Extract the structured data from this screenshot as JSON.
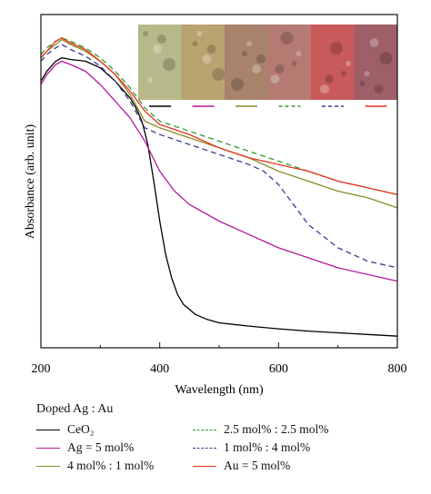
{
  "chart_data": {
    "type": "line",
    "xlabel": "Wavelength (nm)",
    "ylabel": "Absorbance (arb. unit)",
    "xlim": [
      200,
      800
    ],
    "ylim": [
      0,
      1
    ],
    "x_ticks": [
      "200",
      "400",
      "600",
      "800"
    ],
    "grid": false,
    "legend_title": "Doped Ag : Au",
    "legend_placement": "below",
    "series": [
      {
        "name": "CeO₂",
        "color": "#000000",
        "dash": "solid",
        "x": [
          200,
          210,
          225,
          235,
          250,
          275,
          300,
          325,
          350,
          360,
          370,
          380,
          390,
          400,
          410,
          420,
          430,
          440,
          460,
          480,
          500,
          550,
          600,
          650,
          700,
          750,
          800
        ],
        "y": [
          0.8,
          0.83,
          0.86,
          0.87,
          0.865,
          0.86,
          0.84,
          0.8,
          0.75,
          0.72,
          0.68,
          0.61,
          0.5,
          0.38,
          0.28,
          0.21,
          0.16,
          0.13,
          0.1,
          0.085,
          0.075,
          0.065,
          0.057,
          0.05,
          0.045,
          0.04,
          0.035
        ]
      },
      {
        "name": "Ag = 5 mol%",
        "color": "#b5179e",
        "dash": "solid",
        "x": [
          200,
          210,
          225,
          235,
          250,
          275,
          300,
          325,
          350,
          375,
          400,
          425,
          450,
          500,
          550,
          600,
          650,
          700,
          750,
          800
        ],
        "y": [
          0.79,
          0.82,
          0.85,
          0.86,
          0.85,
          0.83,
          0.79,
          0.74,
          0.69,
          0.62,
          0.53,
          0.47,
          0.43,
          0.38,
          0.34,
          0.3,
          0.27,
          0.24,
          0.22,
          0.2
        ]
      },
      {
        "name": "4 mol% : 1 mol%",
        "color": "#8a8a2a",
        "dash": "solid",
        "x": [
          200,
          210,
          225,
          235,
          250,
          275,
          300,
          325,
          350,
          375,
          400,
          450,
          500,
          550,
          600,
          650,
          700,
          750,
          800
        ],
        "y": [
          0.87,
          0.89,
          0.91,
          0.925,
          0.91,
          0.89,
          0.86,
          0.82,
          0.76,
          0.68,
          0.66,
          0.63,
          0.6,
          0.57,
          0.53,
          0.5,
          0.47,
          0.45,
          0.42
        ]
      },
      {
        "name": "2.5 mol% : 2.5 mol%",
        "color": "#2e9e2e",
        "dash": "dashed",
        "x": [
          200,
          210,
          225,
          235,
          250,
          275,
          300,
          325,
          350,
          375,
          400,
          450,
          500,
          550,
          600,
          650,
          700,
          750,
          800
        ],
        "y": [
          0.88,
          0.9,
          0.92,
          0.93,
          0.92,
          0.9,
          0.87,
          0.83,
          0.78,
          0.72,
          0.68,
          0.65,
          0.62,
          0.59,
          0.56,
          0.53,
          0.5,
          0.48,
          0.46
        ]
      },
      {
        "name": "1 mol% : 4 mol%",
        "color": "#3b3b8f",
        "dash": "dashed",
        "x": [
          200,
          210,
          225,
          235,
          250,
          275,
          300,
          325,
          350,
          375,
          400,
          450,
          500,
          550,
          575,
          600,
          625,
          650,
          700,
          750,
          800
        ],
        "y": [
          0.86,
          0.88,
          0.9,
          0.91,
          0.895,
          0.875,
          0.845,
          0.8,
          0.74,
          0.66,
          0.64,
          0.61,
          0.58,
          0.55,
          0.53,
          0.49,
          0.43,
          0.37,
          0.3,
          0.26,
          0.24
        ]
      },
      {
        "name": "Au = 5 mol%",
        "color": "#e8321e",
        "dash": "solid",
        "x": [
          200,
          210,
          225,
          235,
          250,
          275,
          300,
          325,
          350,
          375,
          400,
          450,
          500,
          550,
          600,
          650,
          700,
          750,
          800
        ],
        "y": [
          0.87,
          0.89,
          0.92,
          0.93,
          0.915,
          0.895,
          0.86,
          0.82,
          0.77,
          0.71,
          0.67,
          0.64,
          0.6,
          0.57,
          0.55,
          0.53,
          0.5,
          0.48,
          0.46
        ]
      }
    ],
    "inset": {
      "type": "photo-strip",
      "panels": [
        {
          "fill": "#b7b98a",
          "marker_color": "#000000"
        },
        {
          "fill": "#b9a36f",
          "marker_color": "#b5179e"
        },
        {
          "fill": "#a8826a",
          "marker_color": "#8a8a2a"
        },
        {
          "fill": "#b57a72",
          "marker_color": "#2e9e2e"
        },
        {
          "fill": "#c85a5c",
          "marker_color": "#3b3b8f"
        },
        {
          "fill": "#9e5f66",
          "marker_color": "#e8321e"
        }
      ]
    }
  }
}
